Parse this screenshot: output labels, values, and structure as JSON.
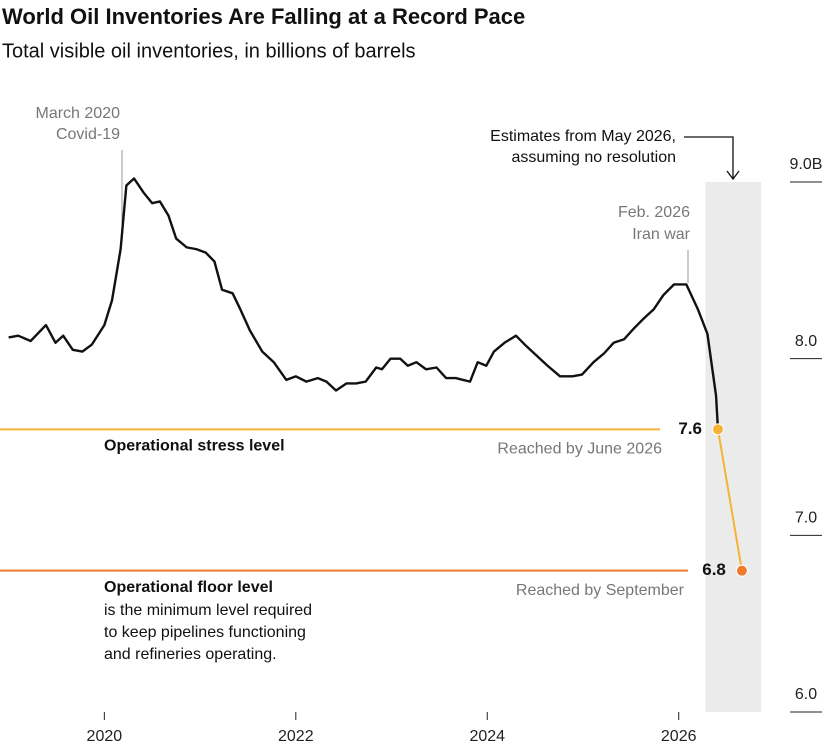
{
  "chart_data": {
    "type": "line",
    "title": "World Oil Inventories Are Falling at a Record Pace",
    "subtitle": "Total visible oil inventories, in billions of barrels",
    "xlim": [
      2018.91,
      2026.87
    ],
    "xticks": [
      2020,
      2022,
      2024,
      2026
    ],
    "ylim": [
      6,
      9
    ],
    "yticks": [
      {
        "value": 6,
        "label": "6.0"
      },
      {
        "value": 7,
        "label": "7.0"
      },
      {
        "value": 8,
        "label": "8.0"
      },
      {
        "value": 9,
        "label": "9.0B"
      }
    ],
    "shaded_region": [
      2026.28,
      2026.86
    ],
    "series": [
      {
        "color": "#111111",
        "x": [
          2019.0,
          2019.1,
          2019.23,
          2019.39,
          2019.49,
          2019.57,
          2019.67,
          2019.77,
          2019.87,
          2020.0,
          2020.08,
          2020.17,
          2020.23,
          2020.31,
          2020.41,
          2020.5,
          2020.58,
          2020.67,
          2020.75,
          2020.86,
          2020.96,
          2021.06,
          2021.15,
          2021.23,
          2021.34,
          2021.42,
          2021.52,
          2021.65,
          2021.77,
          2021.9,
          2022.0,
          2022.11,
          2022.23,
          2022.32,
          2022.42,
          2022.53,
          2022.63,
          2022.73,
          2022.84,
          2022.9,
          2022.99,
          2023.09,
          2023.17,
          2023.26,
          2023.36,
          2023.47,
          2023.57,
          2023.67,
          2023.82,
          2023.9,
          2023.99,
          2024.07,
          2024.18,
          2024.3,
          2024.41,
          2024.51,
          2024.63,
          2024.76,
          2024.89,
          2024.99,
          2025.11,
          2025.22,
          2025.32,
          2025.43,
          2025.53,
          2025.64,
          2025.74,
          2025.84,
          2025.95,
          2026.08,
          2026.2,
          2026.3,
          2026.39,
          2026.41
        ],
        "values": [
          8.12,
          8.13,
          8.1,
          8.19,
          8.09,
          8.13,
          8.05,
          8.04,
          8.08,
          8.19,
          8.33,
          8.62,
          8.98,
          9.02,
          8.94,
          8.88,
          8.89,
          8.81,
          8.68,
          8.63,
          8.62,
          8.6,
          8.55,
          8.39,
          8.37,
          8.28,
          8.16,
          8.04,
          7.98,
          7.88,
          7.9,
          7.87,
          7.89,
          7.87,
          7.82,
          7.86,
          7.86,
          7.87,
          7.95,
          7.94,
          8.0,
          8.0,
          7.96,
          7.98,
          7.94,
          7.95,
          7.89,
          7.89,
          7.87,
          7.98,
          7.96,
          8.04,
          8.09,
          8.13,
          8.07,
          8.02,
          7.96,
          7.9,
          7.9,
          7.91,
          7.98,
          8.03,
          8.09,
          8.11,
          8.17,
          8.23,
          8.28,
          8.36,
          8.42,
          8.42,
          8.28,
          8.14,
          7.79,
          7.6
        ]
      },
      {
        "color": "#f5b335",
        "x": [
          2026.41,
          2026.66
        ],
        "values": [
          7.6,
          6.8
        ],
        "point_colors": [
          "#f5b335",
          "#f07a2b"
        ]
      }
    ],
    "reference_lines": [
      {
        "value": 7.6,
        "color": "#f5b335",
        "label": "Operational stress level",
        "note": "Reached by June 2026"
      },
      {
        "value": 6.8,
        "color": "#f07a2b",
        "label": "Operational floor level",
        "note": "Reached by September",
        "description": [
          "is the minimum level required",
          "to keep pipelines functioning",
          "and refineries operating."
        ]
      }
    ],
    "annotations": [
      {
        "lines": [
          "March 2020",
          "Covid-19"
        ]
      },
      {
        "lines": [
          "Feb. 2026",
          "Iran war"
        ]
      },
      {
        "lines": [
          "Estimates from May 2026,",
          "assuming no resolution"
        ]
      }
    ]
  }
}
